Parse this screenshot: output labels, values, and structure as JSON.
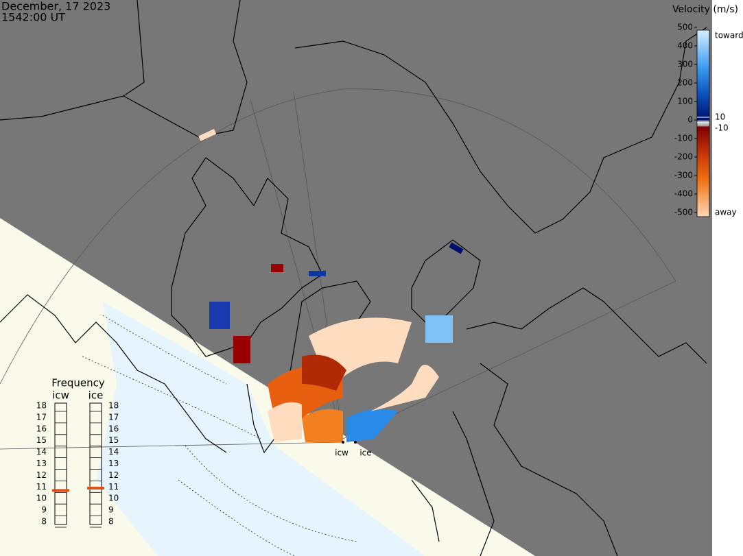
{
  "header": {
    "date": "December, 17 2023",
    "time": "1542:00 UT"
  },
  "colorbar": {
    "title": "Velocity (m/s)",
    "ticks": [
      500,
      400,
      300,
      200,
      100,
      0,
      -100,
      -200,
      -300,
      -400,
      -500
    ],
    "inner_ticks": [
      10,
      -10
    ],
    "upper_label": "toward",
    "lower_label": "away"
  },
  "frequency": {
    "title": "Frequency",
    "ticks": [
      18,
      17,
      16,
      15,
      14,
      13,
      12,
      11,
      10,
      9,
      8
    ],
    "radars": [
      {
        "name": "icw",
        "value": 10.7
      },
      {
        "name": "ice",
        "value": 10.9
      }
    ]
  },
  "stations": [
    "icw",
    "ice"
  ]
}
